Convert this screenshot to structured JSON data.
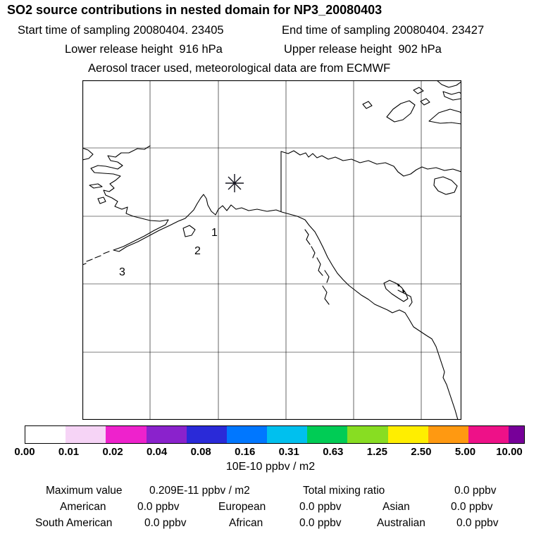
{
  "header": {
    "title": "SO2 source contributions in nested domain for NP3_20080403",
    "start_time": "Start time of sampling 20080404. 23405",
    "end_time": "End time of sampling 20080404. 23427",
    "lower_release": "Lower release height  916 hPa",
    "upper_release": "Upper release height  902 hPa",
    "tracer_line": "Aerosol tracer used, meteorological data are from ECMWF"
  },
  "map": {
    "points": [
      "1",
      "2",
      "3"
    ],
    "marker": "asterisk-release-location"
  },
  "colorbar": {
    "units": "10E-10 ppbv / m2",
    "tick_labels": [
      "0.00",
      "0.01",
      "0.02",
      "0.04",
      "0.08",
      "0.16",
      "0.31",
      "0.63",
      "1.25",
      "2.50",
      "5.00",
      "10.00"
    ],
    "colors": [
      "#ffffff",
      "#f6d4f6",
      "#ee22cc",
      "#8a22cc",
      "#2a2ad8",
      "#0077ff",
      "#00c0ee",
      "#00cc55",
      "#88dd22",
      "#ffee00",
      "#ff9911",
      "#ee1188",
      "#770099"
    ]
  },
  "stats": {
    "max_label": "Maximum value",
    "max_value": "0.209E-11 ppbv / m2",
    "total_label": "Total mixing ratio",
    "total_value": "0.0 ppbv",
    "regions": [
      {
        "label": "American",
        "value": "0.0 ppbv"
      },
      {
        "label": "European",
        "value": "0.0 ppbv"
      },
      {
        "label": "Asian",
        "value": "0.0 ppbv"
      },
      {
        "label": "South American",
        "value": "0.0 ppbv"
      },
      {
        "label": "African",
        "value": "0.0 ppbv"
      },
      {
        "label": "Australian",
        "value": "0.0 ppbv"
      }
    ]
  },
  "chart_data": {
    "type": "heatmap",
    "title": "SO2 source contributions in nested domain for NP3_20080403",
    "subtitle": [
      "Start time of sampling 20080404. 23405  End time of sampling 20080404. 23427",
      "Lower release height 916 hPa  Upper release height 902 hPa",
      "Aerosol tracer used, meteorological data are from ECMWF"
    ],
    "map_region": "Alaska / northwest North America with lat-lon grid",
    "grid": true,
    "colorbar_levels": [
      0.0,
      0.01,
      0.02,
      0.04,
      0.08,
      0.16,
      0.31,
      0.63,
      1.25,
      2.5,
      5.0,
      10.0
    ],
    "colorbar_units": "10E-10 ppbv / m2",
    "field_note": "no shaded contours visible; concentration field below lowest contour level everywhere",
    "markers": {
      "release_asterisk": "interior Alaska",
      "numbered_points": [
        "1",
        "2",
        "3"
      ]
    },
    "maximum_value": "0.209E-11 ppbv / m2",
    "total_mixing_ratio": "0.0 ppbv",
    "regional_mixing_ratios": {
      "American": "0.0 ppbv",
      "European": "0.0 ppbv",
      "Asian": "0.0 ppbv",
      "South American": "0.0 ppbv",
      "African": "0.0 ppbv",
      "Australian": "0.0 ppbv"
    }
  }
}
